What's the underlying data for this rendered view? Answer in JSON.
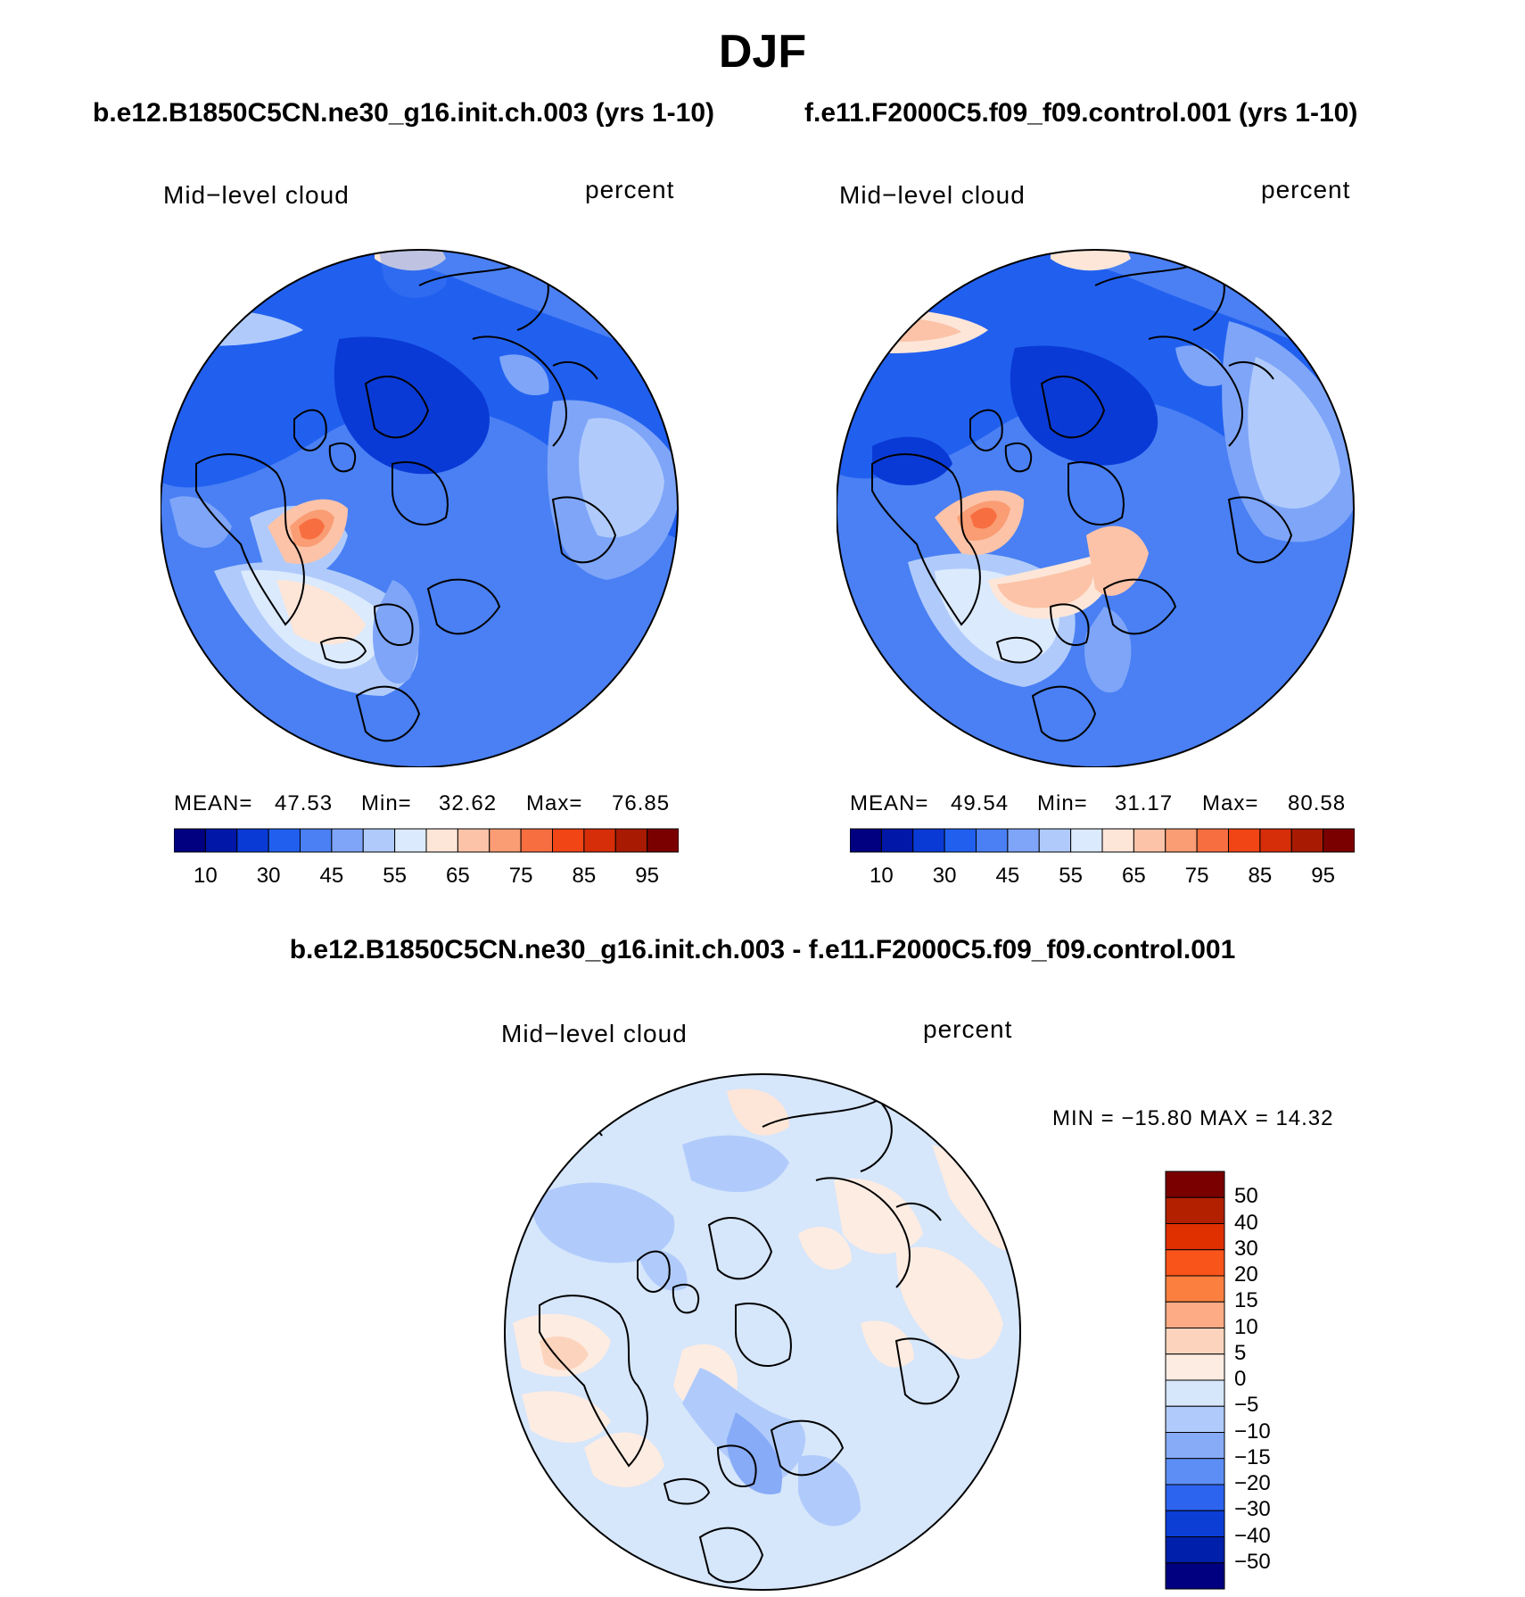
{
  "title": "DJF",
  "panels": [
    {
      "case": "b.e12.B1850C5CN.ne30_g16.init.ch.003 (yrs 1-10)",
      "field": "Mid−level cloud",
      "units": "percent",
      "stats": {
        "mean_label": "MEAN=",
        "mean": "47.53",
        "min_label": "Min=",
        "min": "32.62",
        "max_label": "Max=",
        "max": "76.85"
      },
      "colorbar_labels": [
        "10",
        "30",
        "45",
        "55",
        "65",
        "75",
        "85",
        "95"
      ],
      "colorbar_colors": [
        "#000080",
        "#0017a8",
        "#0a3ad6",
        "#2160ef",
        "#4a80f4",
        "#7ea5f8",
        "#b0cbfb",
        "#dbeafd",
        "#fde6d8",
        "#fcc3a8",
        "#fa9d74",
        "#f76e40",
        "#f14516",
        "#d62e08",
        "#a91a03",
        "#7a0000"
      ]
    },
    {
      "case": "f.e11.F2000C5.f09_f09.control.001 (yrs 1-10)",
      "field": "Mid−level cloud",
      "units": "percent",
      "stats": {
        "mean_label": "MEAN=",
        "mean": "49.54",
        "min_label": "Min=",
        "min": "31.17",
        "max_label": "Max=",
        "max": "80.58"
      },
      "colorbar_labels": [
        "10",
        "30",
        "45",
        "55",
        "65",
        "75",
        "85",
        "95"
      ],
      "colorbar_colors": [
        "#000080",
        "#0017a8",
        "#0a3ad6",
        "#2160ef",
        "#4a80f4",
        "#7ea5f8",
        "#b0cbfb",
        "#dbeafd",
        "#fde6d8",
        "#fcc3a8",
        "#fa9d74",
        "#f76e40",
        "#f14516",
        "#d62e08",
        "#a91a03",
        "#7a0000"
      ]
    }
  ],
  "difference": {
    "title": "b.e12.B1850C5CN.ne30_g16.init.ch.003 - f.e11.F2000C5.f09_f09.control.001",
    "field": "Mid−level cloud",
    "units": "percent",
    "minmax": "MIN = −15.80 MAX =   14.32",
    "colorbar_labels": [
      "50",
      "40",
      "30",
      "20",
      "15",
      "10",
      "5",
      "0",
      "−5",
      "−10",
      "−15",
      "−20",
      "−30",
      "−40",
      "−50"
    ],
    "colorbar_colors": [
      "#7a0000",
      "#b32000",
      "#e03000",
      "#f9541a",
      "#fb8040",
      "#fcab85",
      "#fcd4bd",
      "#fdece2",
      "#d6e6fb",
      "#b0cbfb",
      "#87abf7",
      "#5d8ef5",
      "#2c63ef",
      "#0c3ed6",
      "#0020ab",
      "#000080"
    ]
  }
}
